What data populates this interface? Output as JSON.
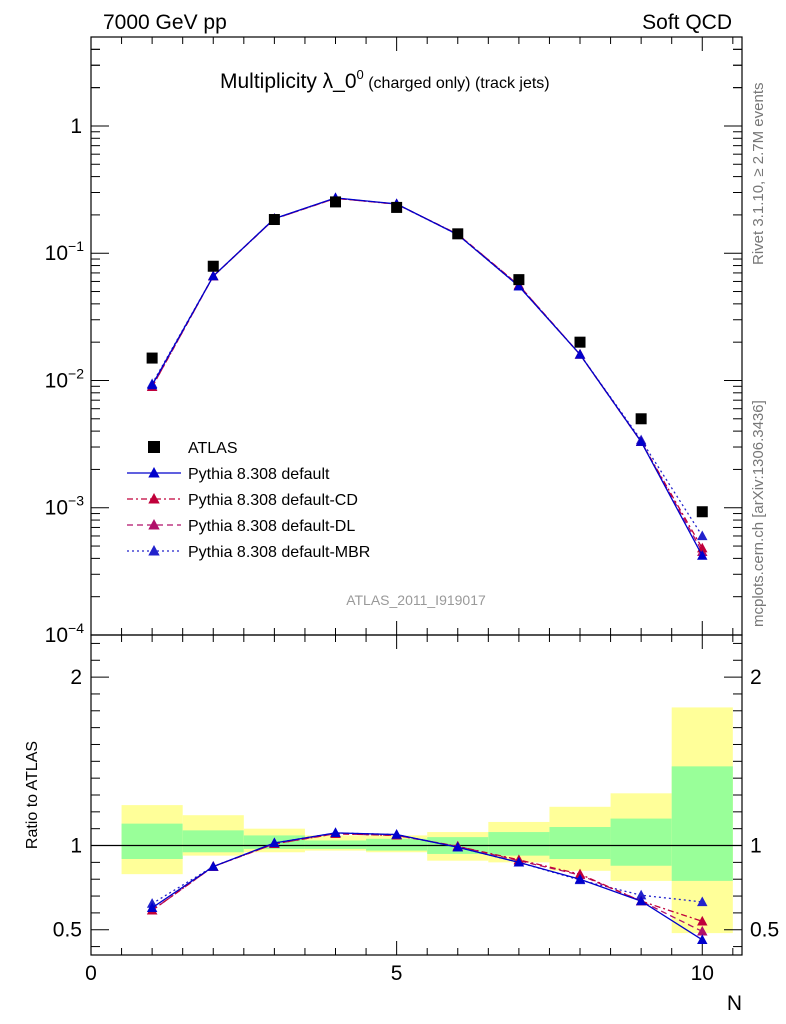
{
  "header": {
    "left": "7000 GeV pp",
    "right": "Soft QCD"
  },
  "side_labels": {
    "rivet": "Rivet 3.1.10, ≥ 2.7M events",
    "mcplots": "mcplots.cern.ch [arXiv:1306.3436]"
  },
  "chart_data": [
    {
      "type": "scatter",
      "panel": "main",
      "title_main": "Multiplicity λ_0",
      "title_sup": "0",
      "title_rest": " (charged only) (track jets)",
      "watermark": "ATLAS_2011_I919017",
      "yscale": "log",
      "ylim": [
        0.0001,
        5
      ],
      "xlim": [
        0,
        10.65
      ],
      "ytick_labels": [
        {
          "value": 1,
          "base": "1",
          "exp": ""
        },
        {
          "value": 0.1,
          "base": "10",
          "exp": "−1"
        },
        {
          "value": 0.01,
          "base": "10",
          "exp": "−2"
        },
        {
          "value": 0.001,
          "base": "10",
          "exp": "−3"
        },
        {
          "value": 0.0001,
          "base": "10",
          "exp": "−4"
        }
      ],
      "legend_position": "bottom-left",
      "x": [
        1,
        2,
        3,
        4,
        5,
        6,
        7,
        8,
        9,
        10
      ],
      "series": [
        {
          "name": "ATLAS",
          "style": "data",
          "color": "#000000",
          "values": [
            0.015,
            0.079,
            0.184,
            0.253,
            0.229,
            0.142,
            0.062,
            0.02,
            0.005,
            0.00093
          ]
        },
        {
          "name": "Pythia 8.308 default",
          "style": "solid",
          "color": "#0000cc",
          "values": [
            0.0092,
            0.066,
            0.187,
            0.272,
            0.244,
            0.14,
            0.055,
            0.016,
            0.0033,
            0.00042
          ]
        },
        {
          "name": "Pythia 8.308 default-CD",
          "style": "dashdot",
          "color": "#c0003a",
          "values": [
            0.0089,
            0.066,
            0.186,
            0.27,
            0.243,
            0.141,
            0.056,
            0.016,
            0.0033,
            0.00048
          ]
        },
        {
          "name": "Pythia 8.308 default-DL",
          "style": "dashed",
          "color": "#b0106a",
          "values": [
            0.0089,
            0.066,
            0.186,
            0.27,
            0.243,
            0.141,
            0.056,
            0.016,
            0.0033,
            0.00045
          ]
        },
        {
          "name": "Pythia 8.308 default-MBR",
          "style": "dotted",
          "color": "#2222cc",
          "values": [
            0.0094,
            0.066,
            0.187,
            0.271,
            0.243,
            0.14,
            0.055,
            0.016,
            0.0034,
            0.0006
          ]
        }
      ]
    },
    {
      "type": "scatter",
      "panel": "ratio",
      "ylabel": "Ratio to ATLAS",
      "xlabel": "N",
      "ylim": [
        0.35,
        2.25
      ],
      "xlim": [
        0,
        10.65
      ],
      "ytick_labels": [
        "0.5",
        "1",
        "2"
      ],
      "xtick_labels": [
        "0",
        "5",
        "10"
      ],
      "bands": {
        "x_edges": [
          [
            0.5,
            1.5
          ],
          [
            1.5,
            2.5
          ],
          [
            2.5,
            3.5
          ],
          [
            3.5,
            4.5
          ],
          [
            4.5,
            5.5
          ],
          [
            5.5,
            6.5
          ],
          [
            6.5,
            7.5
          ],
          [
            7.5,
            8.5
          ],
          [
            8.5,
            9.5
          ],
          [
            9.5,
            10.5
          ]
        ],
        "yellow_low": [
          0.83,
          0.94,
          0.96,
          0.97,
          0.96,
          0.91,
          0.9,
          0.85,
          0.79,
          0.48
        ],
        "yellow_high": [
          1.24,
          1.18,
          1.1,
          1.06,
          1.06,
          1.08,
          1.14,
          1.23,
          1.31,
          1.82
        ],
        "green_low": [
          0.92,
          0.96,
          0.98,
          0.98,
          0.97,
          0.95,
          0.94,
          0.92,
          0.88,
          0.79
        ],
        "green_high": [
          1.13,
          1.09,
          1.06,
          1.03,
          1.04,
          1.05,
          1.08,
          1.11,
          1.16,
          1.47
        ],
        "yellow_color": "#ffff99",
        "green_color": "#99ff99"
      },
      "x": [
        1,
        2,
        3,
        4,
        5,
        6,
        7,
        8,
        9,
        10
      ],
      "series": [
        {
          "name": "Pythia 8.308 default",
          "style": "solid",
          "color": "#0000cc",
          "values": [
            0.63,
            0.875,
            1.015,
            1.075,
            1.065,
            0.99,
            0.9,
            0.8,
            0.67,
            0.44
          ]
        },
        {
          "name": "Pythia 8.308 default-CD",
          "style": "dashdot",
          "color": "#c0003a",
          "values": [
            0.615,
            0.875,
            1.01,
            1.07,
            1.06,
            0.995,
            0.915,
            0.83,
            0.67,
            0.55
          ]
        },
        {
          "name": "Pythia 8.308 default-DL",
          "style": "dashed",
          "color": "#b0106a",
          "values": [
            0.615,
            0.875,
            1.01,
            1.07,
            1.06,
            0.995,
            0.91,
            0.825,
            0.67,
            0.49
          ]
        },
        {
          "name": "Pythia 8.308 default-MBR",
          "style": "dotted",
          "color": "#2222cc",
          "values": [
            0.655,
            0.875,
            1.015,
            1.075,
            1.065,
            0.99,
            0.9,
            0.795,
            0.705,
            0.665
          ]
        }
      ]
    }
  ]
}
